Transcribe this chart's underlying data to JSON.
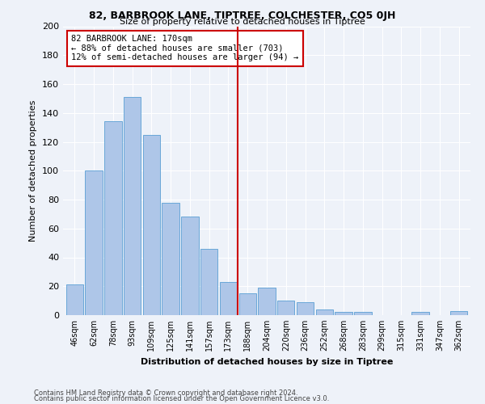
{
  "title1": "82, BARBROOK LANE, TIPTREE, COLCHESTER, CO5 0JH",
  "title2": "Size of property relative to detached houses in Tiptree",
  "xlabel": "Distribution of detached houses by size in Tiptree",
  "ylabel": "Number of detached properties",
  "categories": [
    "46sqm",
    "62sqm",
    "78sqm",
    "93sqm",
    "109sqm",
    "125sqm",
    "141sqm",
    "157sqm",
    "173sqm",
    "188sqm",
    "204sqm",
    "220sqm",
    "236sqm",
    "252sqm",
    "268sqm",
    "283sqm",
    "299sqm",
    "315sqm",
    "331sqm",
    "347sqm",
    "362sqm"
  ],
  "values": [
    21,
    100,
    134,
    151,
    125,
    78,
    68,
    46,
    23,
    15,
    19,
    10,
    9,
    4,
    2,
    2,
    0,
    0,
    2,
    0,
    3
  ],
  "bar_color": "#aec6e8",
  "bar_edge_color": "#5a9fd4",
  "vline_idx": 8,
  "vline_color": "#cc0000",
  "annotation_title": "82 BARBROOK LANE: 170sqm",
  "annotation_line1": "← 88% of detached houses are smaller (703)",
  "annotation_line2": "12% of semi-detached houses are larger (94) →",
  "annotation_box_color": "#cc0000",
  "ylim": [
    0,
    200
  ],
  "yticks": [
    0,
    20,
    40,
    60,
    80,
    100,
    120,
    140,
    160,
    180,
    200
  ],
  "footer1": "Contains HM Land Registry data © Crown copyright and database right 2024.",
  "footer2": "Contains public sector information licensed under the Open Government Licence v3.0.",
  "bg_color": "#eef2f9"
}
